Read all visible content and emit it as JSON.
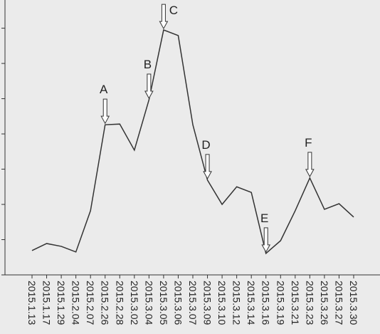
{
  "chart_data": {
    "type": "line",
    "categories": [
      "2015.1.13",
      "2015.1.17",
      "2015.1.29",
      "2015.2.04",
      "2015.2.07",
      "2015.2.26",
      "2015.2.28",
      "2015.3.02",
      "2015.3.04",
      "2015.3.05",
      "2015.3.06",
      "2015.3.07",
      "2015.3.09",
      "2015.3.10",
      "2015.3.12",
      "2015.3.14",
      "2015.3.16",
      "2015.3.19",
      "2015.3.21",
      "2015.3.23",
      "2015.3.26",
      "2015.3.27",
      "2015.3.30"
    ],
    "values": [
      0.69,
      0.89,
      0.81,
      0.65,
      1.82,
      4.26,
      4.28,
      3.54,
      4.97,
      6.95,
      6.79,
      4.26,
      2.69,
      2.0,
      2.5,
      2.34,
      0.61,
      0.97,
      1.82,
      2.75,
      1.86,
      2.02,
      1.64
    ],
    "color": "#333333",
    "ylim": [
      0,
      7.8
    ],
    "yticks": [
      0,
      1,
      2,
      3,
      4,
      5,
      6,
      7
    ],
    "annotations": [
      {
        "text": "A",
        "x": 5
      },
      {
        "text": "B",
        "x": 8
      },
      {
        "text": "C",
        "x": 9
      },
      {
        "text": "D",
        "x": 12
      },
      {
        "text": "E",
        "x": 16
      },
      {
        "text": "F",
        "x": 19
      }
    ]
  }
}
